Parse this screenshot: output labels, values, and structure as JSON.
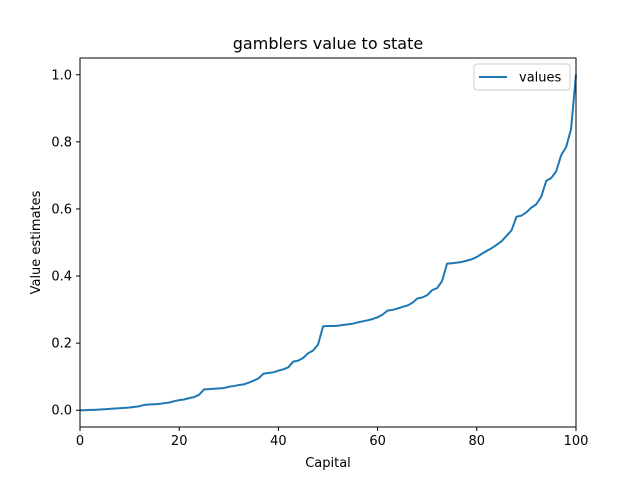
{
  "chart_data": {
    "type": "line",
    "title": "gamblers value to state",
    "xlabel": "Capital",
    "ylabel": "Value estimates",
    "xlim": [
      0,
      100
    ],
    "ylim": [
      -0.05,
      1.05
    ],
    "xticks": [
      0,
      20,
      40,
      60,
      80,
      100
    ],
    "xtick_labels": [
      "0",
      "20",
      "40",
      "60",
      "80",
      "100"
    ],
    "yticks": [
      0.0,
      0.2,
      0.4,
      0.6,
      0.8,
      1.0
    ],
    "ytick_labels": [
      "0.0",
      "0.2",
      "0.4",
      "0.6",
      "0.8",
      "1.0"
    ],
    "grid": false,
    "legend_position": "top-right",
    "series": [
      {
        "name": "values",
        "color": "#1f77b4",
        "x": [
          0,
          1,
          2,
          3,
          4,
          5,
          6,
          7,
          8,
          9,
          10,
          11,
          12,
          13,
          14,
          15,
          16,
          17,
          18,
          19,
          20,
          21,
          22,
          23,
          24,
          25,
          26,
          27,
          28,
          29,
          30,
          31,
          32,
          33,
          34,
          35,
          36,
          37,
          38,
          39,
          40,
          41,
          42,
          43,
          44,
          45,
          46,
          47,
          48,
          49,
          50,
          51,
          52,
          53,
          54,
          55,
          56,
          57,
          58,
          59,
          60,
          61,
          62,
          63,
          64,
          65,
          66,
          67,
          68,
          69,
          70,
          71,
          72,
          73,
          74,
          75,
          76,
          77,
          78,
          79,
          80,
          81,
          82,
          83,
          84,
          85,
          86,
          87,
          88,
          89,
          90,
          91,
          92,
          93,
          94,
          95,
          96,
          97,
          98,
          99,
          100
        ],
        "y": [
          0.0,
          0.0,
          0.001,
          0.001,
          0.002,
          0.003,
          0.004,
          0.005,
          0.006,
          0.007,
          0.008,
          0.01,
          0.012,
          0.016,
          0.017,
          0.018,
          0.019,
          0.021,
          0.023,
          0.027,
          0.03,
          0.032,
          0.036,
          0.039,
          0.046,
          0.062,
          0.063,
          0.064,
          0.065,
          0.066,
          0.07,
          0.072,
          0.075,
          0.077,
          0.082,
          0.088,
          0.095,
          0.109,
          0.111,
          0.113,
          0.118,
          0.122,
          0.128,
          0.145,
          0.148,
          0.156,
          0.17,
          0.178,
          0.196,
          0.25,
          0.251,
          0.251,
          0.252,
          0.254,
          0.256,
          0.258,
          0.262,
          0.265,
          0.268,
          0.272,
          0.277,
          0.285,
          0.297,
          0.299,
          0.303,
          0.308,
          0.312,
          0.32,
          0.333,
          0.336,
          0.343,
          0.358,
          0.364,
          0.385,
          0.437,
          0.438,
          0.44,
          0.442,
          0.446,
          0.45,
          0.457,
          0.466,
          0.475,
          0.483,
          0.493,
          0.504,
          0.52,
          0.536,
          0.577,
          0.58,
          0.59,
          0.604,
          0.614,
          0.637,
          0.684,
          0.692,
          0.712,
          0.76,
          0.784,
          0.838,
          1.0
        ]
      }
    ]
  }
}
